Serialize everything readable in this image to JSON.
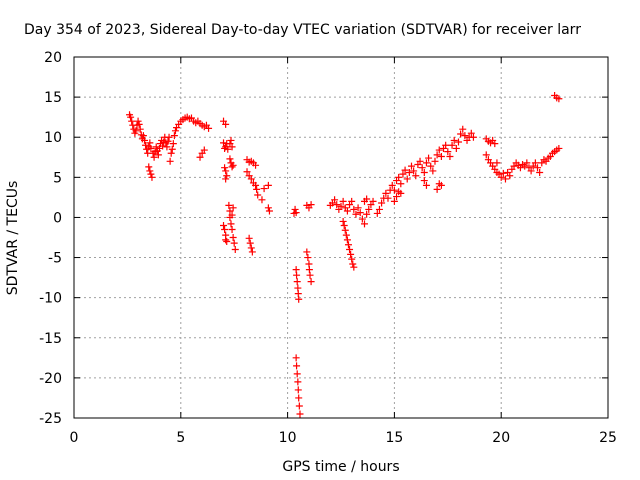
{
  "chart_data": {
    "type": "scatter",
    "title": "Day 354 of 2023, Sidereal Day-to-day VTEC variation (SDTVAR) for receiver larr",
    "xlabel": "GPS time / hours",
    "ylabel": "SDTVAR / TECUs",
    "xlim": [
      0,
      25
    ],
    "ylim": [
      -25,
      20
    ],
    "xticks": [
      0,
      5,
      10,
      15,
      20,
      25
    ],
    "yticks": [
      -25,
      -20,
      -15,
      -10,
      -5,
      0,
      5,
      10,
      15,
      20
    ],
    "grid": true,
    "marker": "+",
    "marker_color": "#ff0000",
    "series": [
      {
        "points": [
          [
            2.6,
            12.8
          ],
          [
            2.65,
            12.5
          ],
          [
            2.7,
            12.0
          ],
          [
            2.75,
            11.5
          ],
          [
            2.8,
            11.0
          ],
          [
            2.85,
            10.5
          ],
          [
            2.9,
            10.8
          ],
          [
            2.95,
            11.5
          ],
          [
            3.0,
            12.0
          ],
          [
            3.05,
            11.6
          ],
          [
            3.1,
            11.0
          ],
          [
            3.15,
            10.3
          ],
          [
            3.2,
            9.8
          ],
          [
            3.25,
            10.2
          ],
          [
            3.3,
            9.6
          ],
          [
            3.35,
            9.0
          ],
          [
            3.4,
            8.5
          ],
          [
            3.45,
            8.0
          ],
          [
            3.5,
            8.8
          ],
          [
            3.55,
            9.3
          ],
          [
            3.6,
            8.6
          ],
          [
            3.5,
            6.3
          ],
          [
            3.55,
            5.8
          ],
          [
            3.6,
            5.4
          ],
          [
            3.65,
            5.0
          ],
          [
            3.7,
            8.0
          ],
          [
            3.75,
            7.5
          ],
          [
            3.8,
            8.2
          ],
          [
            3.85,
            8.8
          ],
          [
            3.9,
            8.3
          ],
          [
            3.95,
            7.8
          ],
          [
            4.0,
            8.6
          ],
          [
            4.05,
            9.2
          ],
          [
            4.1,
            9.6
          ],
          [
            4.15,
            8.9
          ],
          [
            4.2,
            9.4
          ],
          [
            4.25,
            10.0
          ],
          [
            4.3,
            9.3
          ],
          [
            4.35,
            8.8
          ],
          [
            4.4,
            9.5
          ],
          [
            4.45,
            10.0
          ],
          [
            4.5,
            7.0
          ],
          [
            4.55,
            8.0
          ],
          [
            4.6,
            8.5
          ],
          [
            4.65,
            9.2
          ],
          [
            4.7,
            10.2
          ],
          [
            4.75,
            10.8
          ],
          [
            4.8,
            11.2
          ],
          [
            4.9,
            11.6
          ],
          [
            5.0,
            12.0
          ],
          [
            5.1,
            12.2
          ],
          [
            5.2,
            12.4
          ],
          [
            5.3,
            12.5
          ],
          [
            5.4,
            12.3
          ],
          [
            5.5,
            12.4
          ],
          [
            5.6,
            12.0
          ],
          [
            5.7,
            11.8
          ],
          [
            5.8,
            12.0
          ],
          [
            5.9,
            11.7
          ],
          [
            6.0,
            11.5
          ],
          [
            6.1,
            11.3
          ],
          [
            6.2,
            11.5
          ],
          [
            6.3,
            11.1
          ],
          [
            5.9,
            7.5
          ],
          [
            6.0,
            8.0
          ],
          [
            6.1,
            8.4
          ],
          [
            7.0,
            12.0
          ],
          [
            7.1,
            11.6
          ],
          [
            7.0,
            9.3
          ],
          [
            7.05,
            8.6
          ],
          [
            7.1,
            8.8
          ],
          [
            7.15,
            9.2
          ],
          [
            7.2,
            8.5
          ],
          [
            7.3,
            9.2
          ],
          [
            7.35,
            9.6
          ],
          [
            7.4,
            8.8
          ],
          [
            7.3,
            7.3
          ],
          [
            7.35,
            6.8
          ],
          [
            7.4,
            6.3
          ],
          [
            7.45,
            6.5
          ],
          [
            7.05,
            6.2
          ],
          [
            7.1,
            5.8
          ],
          [
            7.15,
            5.2
          ],
          [
            7.1,
            4.8
          ],
          [
            7.0,
            -1.0
          ],
          [
            7.05,
            -1.5
          ],
          [
            7.1,
            -2.2
          ],
          [
            7.1,
            -2.8
          ],
          [
            7.15,
            -3.0
          ],
          [
            7.25,
            1.5
          ],
          [
            7.3,
            0.8
          ],
          [
            7.3,
            0.0
          ],
          [
            7.35,
            -0.8
          ],
          [
            7.4,
            -1.5
          ],
          [
            7.45,
            -2.5
          ],
          [
            7.5,
            -3.2
          ],
          [
            7.55,
            -4.0
          ],
          [
            7.4,
            0.3
          ],
          [
            7.45,
            1.2
          ],
          [
            8.1,
            7.2
          ],
          [
            8.2,
            6.9
          ],
          [
            8.3,
            7.0
          ],
          [
            8.4,
            6.8
          ],
          [
            8.5,
            6.5
          ],
          [
            8.1,
            5.7
          ],
          [
            8.2,
            5.2
          ],
          [
            8.3,
            4.8
          ],
          [
            8.4,
            4.3
          ],
          [
            8.5,
            4.0
          ],
          [
            8.55,
            3.5
          ],
          [
            8.6,
            2.8
          ],
          [
            8.8,
            2.2
          ],
          [
            8.9,
            3.6
          ],
          [
            9.1,
            4.0
          ],
          [
            9.1,
            1.2
          ],
          [
            9.15,
            0.8
          ],
          [
            8.2,
            -2.6
          ],
          [
            8.25,
            -3.2
          ],
          [
            8.3,
            -3.8
          ],
          [
            8.35,
            -4.3
          ],
          [
            10.3,
            0.5
          ],
          [
            10.35,
            1.0
          ],
          [
            10.4,
            0.6
          ],
          [
            10.9,
            1.5
          ],
          [
            11.0,
            1.2
          ],
          [
            11.1,
            1.6
          ],
          [
            10.4,
            -6.5
          ],
          [
            10.42,
            -7.2
          ],
          [
            10.45,
            -8.0
          ],
          [
            10.48,
            -8.8
          ],
          [
            10.5,
            -9.5
          ],
          [
            10.52,
            -10.2
          ],
          [
            10.4,
            -17.5
          ],
          [
            10.42,
            -18.5
          ],
          [
            10.45,
            -19.5
          ],
          [
            10.48,
            -20.5
          ],
          [
            10.5,
            -21.5
          ],
          [
            10.52,
            -22.5
          ],
          [
            10.55,
            -23.5
          ],
          [
            10.58,
            -24.5
          ],
          [
            10.9,
            -4.3
          ],
          [
            10.95,
            -5.0
          ],
          [
            11.0,
            -5.8
          ],
          [
            11.02,
            -6.5
          ],
          [
            11.05,
            -7.2
          ],
          [
            11.1,
            -8.0
          ],
          [
            12.0,
            1.5
          ],
          [
            12.1,
            1.8
          ],
          [
            12.2,
            2.2
          ],
          [
            12.3,
            1.6
          ],
          [
            12.4,
            1.0
          ],
          [
            12.5,
            1.4
          ],
          [
            12.6,
            2.0
          ],
          [
            12.7,
            1.2
          ],
          [
            12.8,
            0.8
          ],
          [
            12.9,
            1.6
          ],
          [
            13.0,
            2.0
          ],
          [
            13.1,
            1.0
          ],
          [
            13.2,
            0.4
          ],
          [
            13.3,
            1.2
          ],
          [
            13.4,
            0.6
          ],
          [
            13.5,
            -0.2
          ],
          [
            13.6,
            -0.8
          ],
          [
            13.7,
            0.4
          ],
          [
            13.8,
            1.0
          ],
          [
            13.9,
            1.6
          ],
          [
            14.0,
            2.0
          ],
          [
            13.6,
            2.0
          ],
          [
            13.7,
            2.3
          ],
          [
            12.6,
            -0.5
          ],
          [
            12.65,
            -1.0
          ],
          [
            12.7,
            -1.6
          ],
          [
            12.75,
            -2.2
          ],
          [
            12.8,
            -2.8
          ],
          [
            12.85,
            -3.4
          ],
          [
            12.9,
            -4.0
          ],
          [
            12.95,
            -4.6
          ],
          [
            13.0,
            -5.2
          ],
          [
            13.05,
            -5.8
          ],
          [
            13.1,
            -6.2
          ],
          [
            14.2,
            0.5
          ],
          [
            14.3,
            1.0
          ],
          [
            14.4,
            1.8
          ],
          [
            14.5,
            2.4
          ],
          [
            14.6,
            3.0
          ],
          [
            14.7,
            2.4
          ],
          [
            14.8,
            3.4
          ],
          [
            14.9,
            4.0
          ],
          [
            15.0,
            3.4
          ],
          [
            15.1,
            4.6
          ],
          [
            15.2,
            5.0
          ],
          [
            15.3,
            4.2
          ],
          [
            15.4,
            5.4
          ],
          [
            15.5,
            5.9
          ],
          [
            15.6,
            4.8
          ],
          [
            15.7,
            5.6
          ],
          [
            15.8,
            6.4
          ],
          [
            15.9,
            5.8
          ],
          [
            16.0,
            5.2
          ],
          [
            16.1,
            6.6
          ],
          [
            16.2,
            7.0
          ],
          [
            16.3,
            6.2
          ],
          [
            16.4,
            5.6
          ],
          [
            16.5,
            6.8
          ],
          [
            16.6,
            7.4
          ],
          [
            16.7,
            6.4
          ],
          [
            16.8,
            5.8
          ],
          [
            16.9,
            7.0
          ],
          [
            17.0,
            7.8
          ],
          [
            17.1,
            8.4
          ],
          [
            17.2,
            7.6
          ],
          [
            17.3,
            8.6
          ],
          [
            17.4,
            9.0
          ],
          [
            17.5,
            8.2
          ],
          [
            17.6,
            7.6
          ],
          [
            17.7,
            9.0
          ],
          [
            17.8,
            9.6
          ],
          [
            17.9,
            8.6
          ],
          [
            18.0,
            9.4
          ],
          [
            18.1,
            10.4
          ],
          [
            18.2,
            11.0
          ],
          [
            18.3,
            10.2
          ],
          [
            18.4,
            9.6
          ],
          [
            18.5,
            10.0
          ],
          [
            18.6,
            10.5
          ],
          [
            18.7,
            10.0
          ],
          [
            17.0,
            3.5
          ],
          [
            17.1,
            4.2
          ],
          [
            17.2,
            4.0
          ],
          [
            15.0,
            2.0
          ],
          [
            15.1,
            2.6
          ],
          [
            15.2,
            3.2
          ],
          [
            15.3,
            3.0
          ],
          [
            16.4,
            4.6
          ],
          [
            16.5,
            4.0
          ],
          [
            19.3,
            9.8
          ],
          [
            19.4,
            9.5
          ],
          [
            19.5,
            9.3
          ],
          [
            19.6,
            9.6
          ],
          [
            19.7,
            9.2
          ],
          [
            19.3,
            7.8
          ],
          [
            19.4,
            7.2
          ],
          [
            19.5,
            6.8
          ],
          [
            19.6,
            6.4
          ],
          [
            19.7,
            6.0
          ],
          [
            19.8,
            5.6
          ],
          [
            19.9,
            5.4
          ],
          [
            19.8,
            6.8
          ],
          [
            20.0,
            5.0
          ],
          [
            20.1,
            5.5
          ],
          [
            20.2,
            4.8
          ],
          [
            20.3,
            5.6
          ],
          [
            20.4,
            5.2
          ],
          [
            20.5,
            6.0
          ],
          [
            20.6,
            6.4
          ],
          [
            20.7,
            6.8
          ],
          [
            20.8,
            6.5
          ],
          [
            20.9,
            6.2
          ],
          [
            21.0,
            6.6
          ],
          [
            21.1,
            6.4
          ],
          [
            21.2,
            6.8
          ],
          [
            21.3,
            6.2
          ],
          [
            21.4,
            5.8
          ],
          [
            21.5,
            6.4
          ],
          [
            21.6,
            6.8
          ],
          [
            21.7,
            6.2
          ],
          [
            21.8,
            5.6
          ],
          [
            21.9,
            6.8
          ],
          [
            22.0,
            7.2
          ],
          [
            22.1,
            7.0
          ],
          [
            22.2,
            7.4
          ],
          [
            22.3,
            7.6
          ],
          [
            22.4,
            8.0
          ],
          [
            22.5,
            8.2
          ],
          [
            22.6,
            8.4
          ],
          [
            22.7,
            8.6
          ],
          [
            22.5,
            15.2
          ],
          [
            22.6,
            14.9
          ],
          [
            22.7,
            14.8
          ]
        ]
      }
    ]
  }
}
